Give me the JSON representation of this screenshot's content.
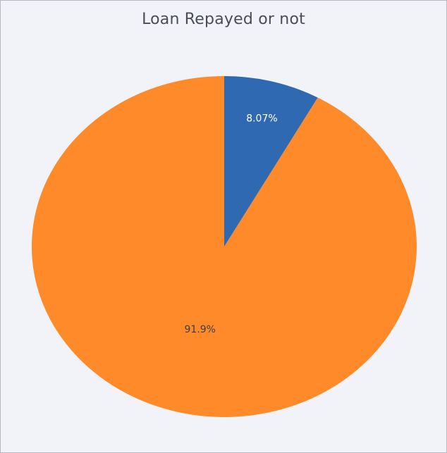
{
  "chart_data": {
    "type": "pie",
    "title": "Loan Repayed or not",
    "slices": [
      {
        "value": 91.9,
        "label": "91.9%",
        "color": "#ff8a2a",
        "text_color": "#3d3f48"
      },
      {
        "value": 8.07,
        "label": "8.07%",
        "color": "#2f69b1",
        "text_color": "#ffffff"
      }
    ],
    "direction": "counterclockwise",
    "start": "top",
    "legend": "none"
  }
}
